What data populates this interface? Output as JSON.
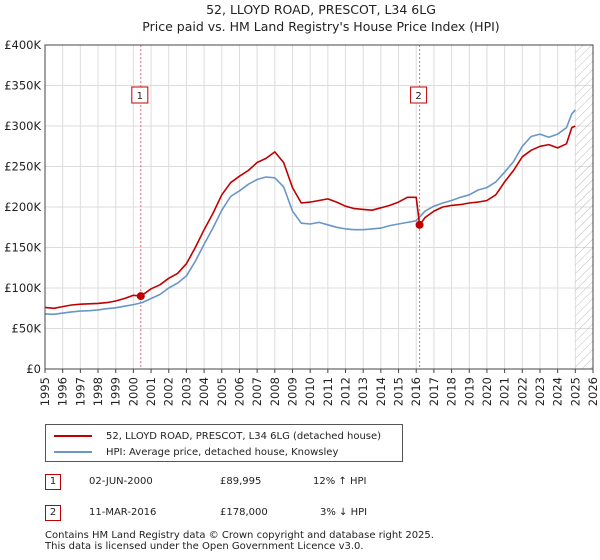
{
  "chart_data": {
    "type": "line",
    "title": "52, LLOYD ROAD, PRESCOT, L34 6LG",
    "subtitle": "Price paid vs. HM Land Registry's House Price Index (HPI)",
    "xlim": [
      1995,
      2026
    ],
    "ylim": [
      0,
      400000
    ],
    "y_ticks": [
      {
        "value": 0,
        "label": "£0"
      },
      {
        "value": 50000,
        "label": "£50K"
      },
      {
        "value": 100000,
        "label": "£100K"
      },
      {
        "value": 150000,
        "label": "£150K"
      },
      {
        "value": 200000,
        "label": "£200K"
      },
      {
        "value": 250000,
        "label": "£250K"
      },
      {
        "value": 300000,
        "label": "£300K"
      },
      {
        "value": 350000,
        "label": "£350K"
      },
      {
        "value": 400000,
        "label": "£400K"
      }
    ],
    "x_ticks": [
      "1995",
      "1996",
      "1997",
      "1998",
      "1999",
      "2000",
      "2001",
      "2002",
      "2003",
      "2004",
      "2005",
      "2006",
      "2007",
      "2008",
      "2009",
      "2010",
      "2011",
      "2012",
      "2013",
      "2014",
      "2015",
      "2016",
      "2017",
      "2018",
      "2019",
      "2020",
      "2021",
      "2022",
      "2023",
      "2024",
      "2025",
      "2026"
    ],
    "hatch_from": 2025.0,
    "series": [
      {
        "name": "52, LLOYD ROAD, PRESCOT, L34 6LG (detached house)",
        "color": "#c00000",
        "x": [
          1995.0,
          1995.5,
          1996.0,
          1996.5,
          1997.0,
          1997.5,
          1998.0,
          1998.5,
          1999.0,
          1999.5,
          2000.0,
          2000.42,
          2001.0,
          2001.5,
          2002.0,
          2002.5,
          2003.0,
          2003.5,
          2004.0,
          2004.5,
          2005.0,
          2005.5,
          2006.0,
          2006.5,
          2007.0,
          2007.5,
          2008.0,
          2008.5,
          2009.0,
          2009.5,
          2010.0,
          2010.5,
          2011.0,
          2011.5,
          2012.0,
          2012.5,
          2013.0,
          2013.5,
          2014.0,
          2014.5,
          2015.0,
          2015.5,
          2016.0,
          2016.19,
          2016.5,
          2017.0,
          2017.5,
          2018.0,
          2018.5,
          2019.0,
          2019.5,
          2020.0,
          2020.5,
          2021.0,
          2021.5,
          2022.0,
          2022.5,
          2023.0,
          2023.5,
          2024.0,
          2024.5,
          2024.8,
          2025.0
        ],
        "y": [
          76000,
          75000,
          77000,
          79000,
          80000,
          80500,
          81000,
          82000,
          84000,
          87000,
          91000,
          89995,
          99000,
          104000,
          112000,
          118000,
          130000,
          150000,
          172000,
          192000,
          215000,
          230000,
          238000,
          245000,
          255000,
          260000,
          268000,
          255000,
          224000,
          205000,
          206000,
          208000,
          210000,
          206000,
          201000,
          198000,
          197000,
          196000,
          199000,
          202000,
          206000,
          212000,
          212000,
          178000,
          187000,
          195000,
          200000,
          202000,
          203000,
          205000,
          206000,
          208000,
          215000,
          231000,
          245000,
          262000,
          270000,
          275000,
          277000,
          273000,
          278000,
          298000,
          300000
        ]
      },
      {
        "name": "HPI: Average price, detached house, Knowsley",
        "color": "#6a96c8",
        "x": [
          1995.0,
          1995.5,
          1996.0,
          1996.5,
          1997.0,
          1997.5,
          1998.0,
          1998.5,
          1999.0,
          1999.5,
          2000.0,
          2000.5,
          2001.0,
          2001.5,
          2002.0,
          2002.5,
          2003.0,
          2003.5,
          2004.0,
          2004.5,
          2005.0,
          2005.5,
          2006.0,
          2006.5,
          2007.0,
          2007.5,
          2008.0,
          2008.5,
          2009.0,
          2009.5,
          2010.0,
          2010.5,
          2011.0,
          2011.5,
          2012.0,
          2012.5,
          2013.0,
          2013.5,
          2014.0,
          2014.5,
          2015.0,
          2015.5,
          2016.0,
          2016.5,
          2017.0,
          2017.5,
          2018.0,
          2018.5,
          2019.0,
          2019.5,
          2020.0,
          2020.5,
          2021.0,
          2021.5,
          2022.0,
          2022.5,
          2023.0,
          2023.5,
          2024.0,
          2024.5,
          2024.8,
          2025.0
        ],
        "y": [
          68000,
          67500,
          69000,
          70500,
          71500,
          72000,
          73000,
          74500,
          75500,
          77500,
          79500,
          82000,
          87000,
          92000,
          100000,
          106000,
          115000,
          133000,
          154000,
          174000,
          196000,
          213000,
          220000,
          228000,
          234000,
          237000,
          236000,
          225000,
          195000,
          180000,
          179000,
          181000,
          178000,
          175000,
          173000,
          172000,
          172000,
          173000,
          174000,
          177000,
          179000,
          181000,
          183000,
          195000,
          201000,
          205000,
          208000,
          212000,
          215000,
          221000,
          224000,
          231000,
          243000,
          256000,
          275000,
          287000,
          290000,
          286000,
          290000,
          298000,
          315000,
          320000
        ]
      }
    ],
    "sales": [
      {
        "id": "1",
        "x": 2000.42,
        "y": 89995,
        "vline_x": 2000.42
      },
      {
        "id": "2",
        "x": 2016.19,
        "y": 178000,
        "vline_x": 2016.19
      }
    ]
  },
  "legend": {
    "property_label": "52, LLOYD ROAD, PRESCOT, L34 6LG (detached house)",
    "hpi_label": "HPI: Average price, detached house, Knowsley"
  },
  "transactions": [
    {
      "id": "1",
      "date": "02-JUN-2000",
      "price": "£89,995",
      "delta": "12% ↑ HPI"
    },
    {
      "id": "2",
      "date": "11-MAR-2016",
      "price": "£178,000",
      "delta": "3% ↓ HPI"
    }
  ],
  "footer": {
    "line1": "Contains HM Land Registry data © Crown copyright and database right 2025.",
    "line2": "This data is licensed under the Open Government Licence v3.0."
  },
  "colors": {
    "property": "#c00000",
    "hpi": "#6a96c8",
    "grid": "#dddddd",
    "axis": "#444444"
  }
}
